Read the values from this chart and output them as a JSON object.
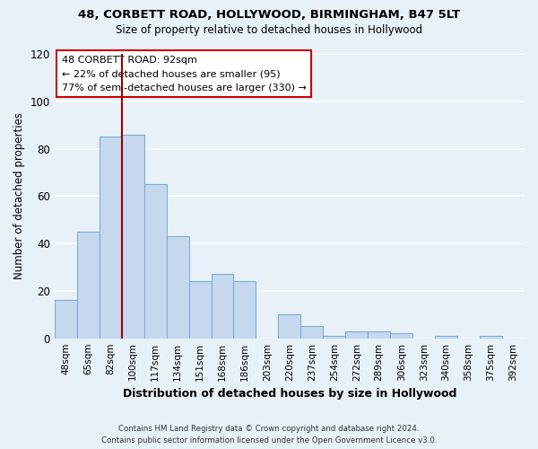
{
  "title": "48, CORBETT ROAD, HOLLYWOOD, BIRMINGHAM, B47 5LT",
  "subtitle": "Size of property relative to detached houses in Hollywood",
  "xlabel": "Distribution of detached houses by size in Hollywood",
  "ylabel": "Number of detached properties",
  "footer_line1": "Contains HM Land Registry data © Crown copyright and database right 2024.",
  "footer_line2": "Contains public sector information licensed under the Open Government Licence v3.0.",
  "categories": [
    "48sqm",
    "65sqm",
    "82sqm",
    "100sqm",
    "117sqm",
    "134sqm",
    "151sqm",
    "168sqm",
    "186sqm",
    "203sqm",
    "220sqm",
    "237sqm",
    "254sqm",
    "272sqm",
    "289sqm",
    "306sqm",
    "323sqm",
    "340sqm",
    "358sqm",
    "375sqm",
    "392sqm"
  ],
  "bar_values": [
    16,
    45,
    85,
    86,
    65,
    43,
    24,
    27,
    24,
    0,
    10,
    5,
    1,
    3,
    3,
    2,
    0,
    1,
    0,
    1,
    0
  ],
  "bar_color": "#c5d8ee",
  "bar_edge_color": "#7bafd4",
  "background_color": "#e8f0f8",
  "grid_color": "#ffffff",
  "vline_color": "#990000",
  "annotation_text": "48 CORBETT ROAD: 92sqm\n← 22% of detached houses are smaller (95)\n77% of semi-detached houses are larger (330) →",
  "annotation_box_edgecolor": "#cc0000",
  "ylim": [
    0,
    120
  ],
  "yticks": [
    0,
    20,
    40,
    60,
    80,
    100,
    120
  ],
  "vline_position": 2.556
}
